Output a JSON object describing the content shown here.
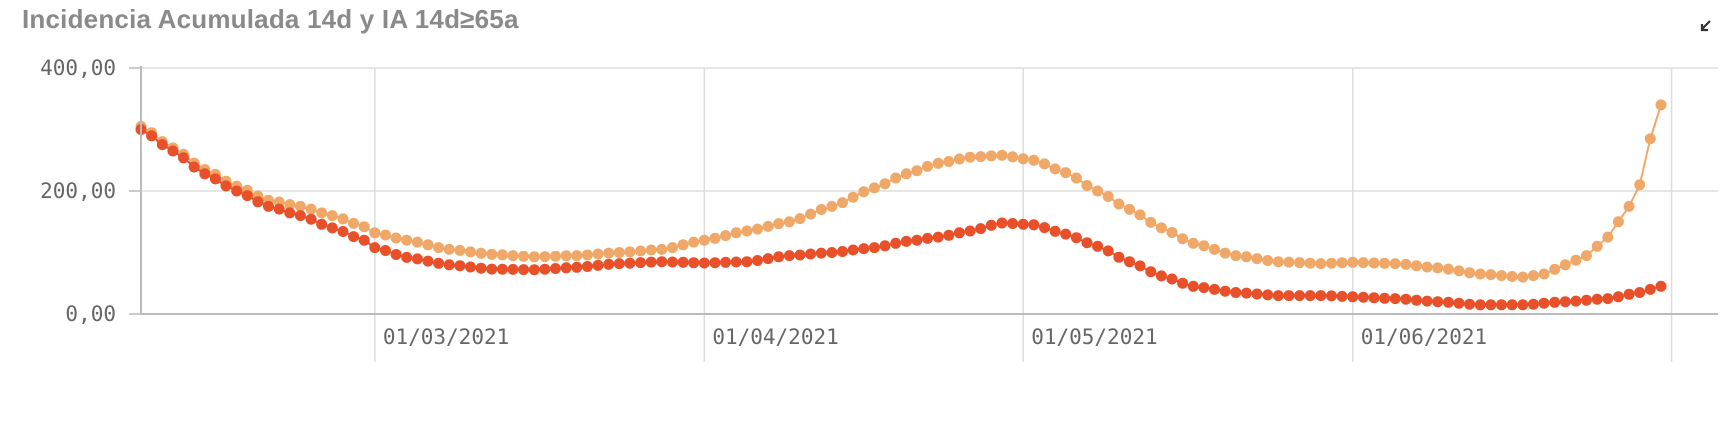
{
  "title": "Incidencia Acumulada 14d y IA 14d≥65a",
  "icons": {
    "expand": "expand-icon"
  },
  "colors": {
    "ia14d": "#f0a868",
    "ia14d65": "#e8502a",
    "grid": "#dddddd",
    "axis": "#bbbbbb"
  },
  "chart_data": {
    "type": "line",
    "ylim": [
      0,
      400
    ],
    "y_ticks": [
      {
        "value": 0,
        "label": "0,00"
      },
      {
        "value": 200,
        "label": "200,00"
      },
      {
        "value": 400,
        "label": "400,00"
      }
    ],
    "x_range": [
      "2021-02-07",
      "2021-06-30"
    ],
    "x_ticks": [
      {
        "date": "2021-03-01",
        "label": "01/03/2021"
      },
      {
        "date": "2021-04-01",
        "label": "01/04/2021"
      },
      {
        "date": "2021-05-01",
        "label": "01/05/2021"
      },
      {
        "date": "2021-06-01",
        "label": "01/06/2021"
      }
    ],
    "grid": true,
    "legend": "none",
    "series": [
      {
        "key": "ia14d",
        "points": [
          [
            "2021-02-07",
            305
          ],
          [
            "2021-02-10",
            270
          ],
          [
            "2021-02-13",
            235
          ],
          [
            "2021-02-16",
            208
          ],
          [
            "2021-02-19",
            185
          ],
          [
            "2021-02-22",
            175
          ],
          [
            "2021-02-25",
            160
          ],
          [
            "2021-02-28",
            142
          ],
          [
            "2021-03-01",
            132
          ],
          [
            "2021-03-04",
            120
          ],
          [
            "2021-03-08",
            105
          ],
          [
            "2021-03-12",
            97
          ],
          [
            "2021-03-16",
            93
          ],
          [
            "2021-03-20",
            95
          ],
          [
            "2021-03-24",
            100
          ],
          [
            "2021-03-28",
            105
          ],
          [
            "2021-04-01",
            120
          ],
          [
            "2021-04-05",
            135
          ],
          [
            "2021-04-09",
            150
          ],
          [
            "2021-04-13",
            175
          ],
          [
            "2021-04-17",
            205
          ],
          [
            "2021-04-20",
            228
          ],
          [
            "2021-04-23",
            245
          ],
          [
            "2021-04-26",
            255
          ],
          [
            "2021-04-29",
            258
          ],
          [
            "2021-05-02",
            250
          ],
          [
            "2021-05-05",
            230
          ],
          [
            "2021-05-08",
            200
          ],
          [
            "2021-05-11",
            170
          ],
          [
            "2021-05-14",
            140
          ],
          [
            "2021-05-17",
            115
          ],
          [
            "2021-05-21",
            95
          ],
          [
            "2021-05-25",
            85
          ],
          [
            "2021-05-29",
            82
          ],
          [
            "2021-06-01",
            84
          ],
          [
            "2021-06-05",
            82
          ],
          [
            "2021-06-09",
            75
          ],
          [
            "2021-06-13",
            65
          ],
          [
            "2021-06-17",
            60
          ],
          [
            "2021-06-19",
            65
          ],
          [
            "2021-06-21",
            80
          ],
          [
            "2021-06-23",
            95
          ],
          [
            "2021-06-25",
            125
          ],
          [
            "2021-06-27",
            175
          ],
          [
            "2021-06-28",
            210
          ],
          [
            "2021-06-29",
            285
          ],
          [
            "2021-06-30",
            340
          ]
        ]
      },
      {
        "key": "ia14d65",
        "points": [
          [
            "2021-02-07",
            300
          ],
          [
            "2021-02-10",
            265
          ],
          [
            "2021-02-13",
            228
          ],
          [
            "2021-02-16",
            200
          ],
          [
            "2021-02-19",
            175
          ],
          [
            "2021-02-22",
            160
          ],
          [
            "2021-02-25",
            140
          ],
          [
            "2021-02-28",
            120
          ],
          [
            "2021-03-01",
            108
          ],
          [
            "2021-03-04",
            92
          ],
          [
            "2021-03-08",
            80
          ],
          [
            "2021-03-12",
            73
          ],
          [
            "2021-03-16",
            72
          ],
          [
            "2021-03-20",
            76
          ],
          [
            "2021-03-24",
            82
          ],
          [
            "2021-03-28",
            85
          ],
          [
            "2021-04-01",
            83
          ],
          [
            "2021-04-05",
            85
          ],
          [
            "2021-04-09",
            95
          ],
          [
            "2021-04-13",
            100
          ],
          [
            "2021-04-17",
            108
          ],
          [
            "2021-04-20",
            118
          ],
          [
            "2021-04-23",
            125
          ],
          [
            "2021-04-26",
            135
          ],
          [
            "2021-04-29",
            148
          ],
          [
            "2021-05-02",
            145
          ],
          [
            "2021-05-05",
            130
          ],
          [
            "2021-05-08",
            110
          ],
          [
            "2021-05-11",
            85
          ],
          [
            "2021-05-14",
            62
          ],
          [
            "2021-05-17",
            45
          ],
          [
            "2021-05-21",
            35
          ],
          [
            "2021-05-25",
            30
          ],
          [
            "2021-05-29",
            30
          ],
          [
            "2021-06-01",
            28
          ],
          [
            "2021-06-05",
            25
          ],
          [
            "2021-06-09",
            20
          ],
          [
            "2021-06-13",
            15
          ],
          [
            "2021-06-17",
            15
          ],
          [
            "2021-06-21",
            20
          ],
          [
            "2021-06-25",
            25
          ],
          [
            "2021-06-28",
            35
          ],
          [
            "2021-06-30",
            45
          ]
        ]
      }
    ]
  }
}
